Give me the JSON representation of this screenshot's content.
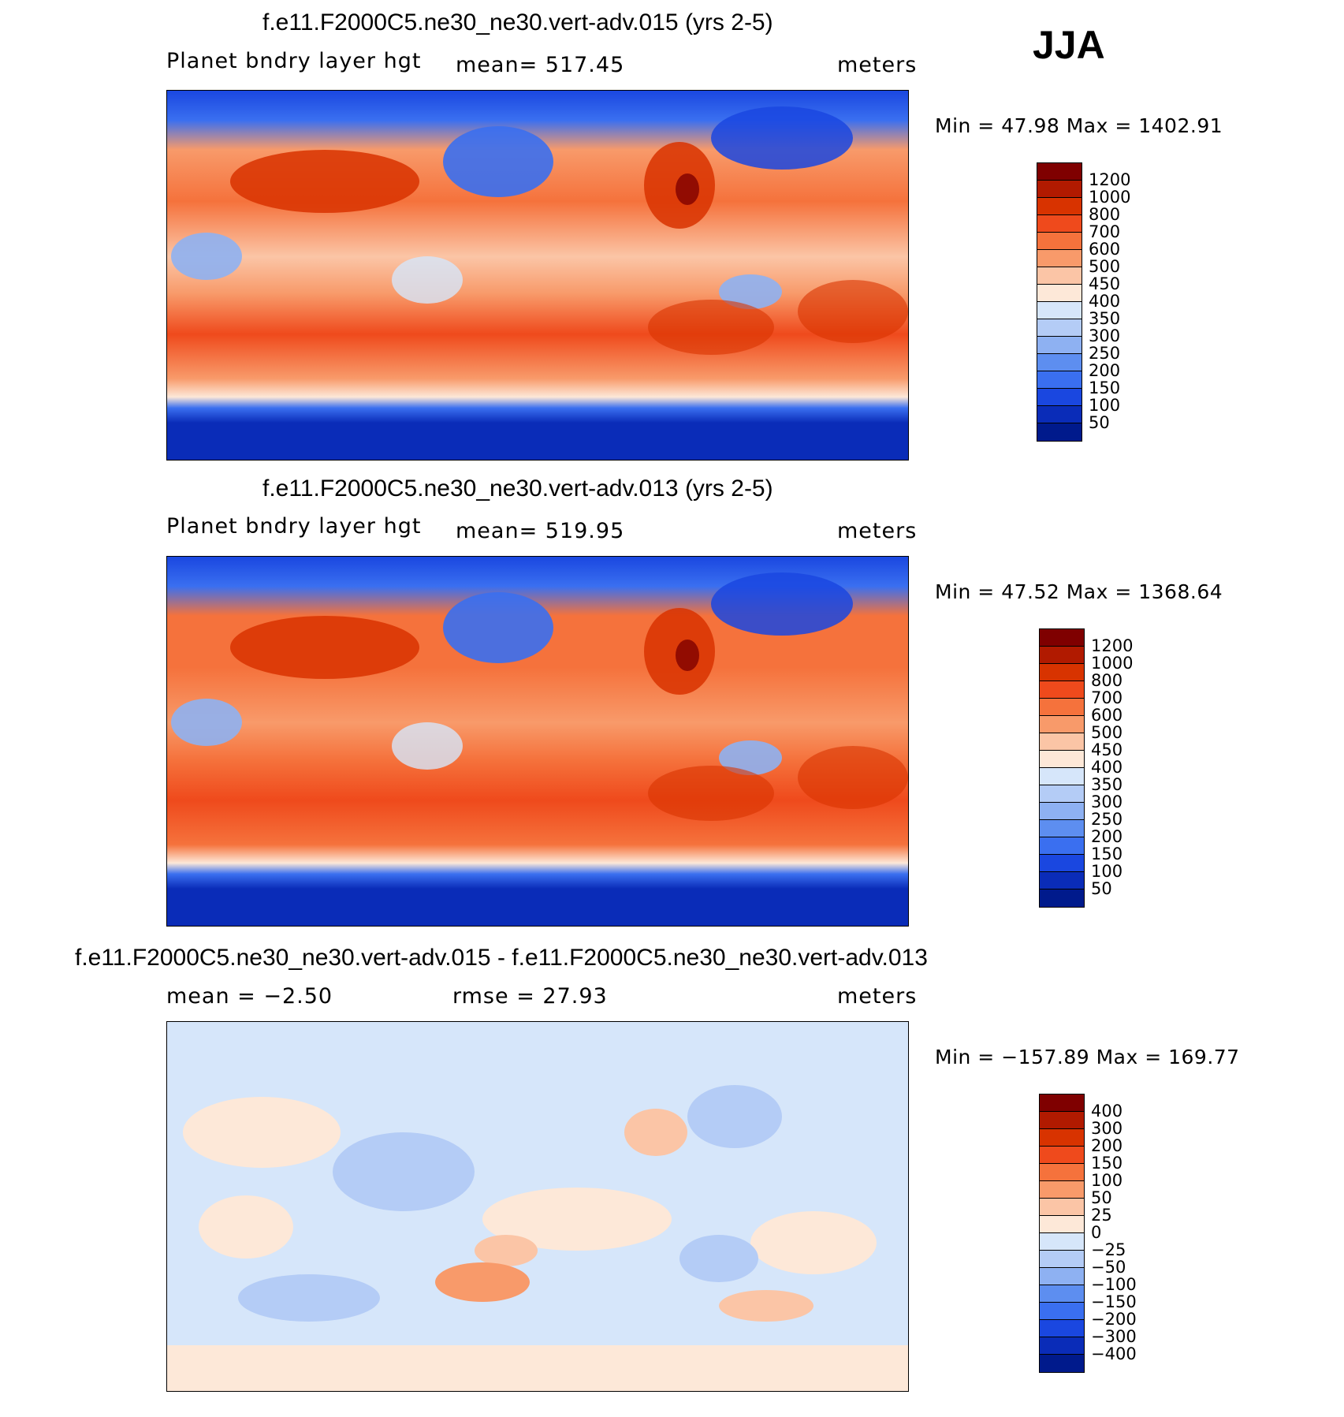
{
  "season": "JJA",
  "panels": [
    {
      "title": "f.e11.F2000C5.ne30_ne30.vert-adv.015 (yrs 2-5)",
      "left_label": "Planet bndry layer hgt",
      "center_label": "mean=  517.45",
      "units": "meters",
      "minmax": "Min =   47.98  Max  =  1402.91",
      "colorbar_labels": [
        "1200",
        "1000",
        "800",
        "700",
        "600",
        "500",
        "450",
        "400",
        "350",
        "300",
        "250",
        "200",
        "150",
        "100",
        "50"
      ]
    },
    {
      "title": "f.e11.F2000C5.ne30_ne30.vert-adv.013 (yrs 2-5)",
      "left_label": "Planet bndry layer hgt",
      "center_label": "mean=  519.95",
      "units": "meters",
      "minmax": "Min =   47.52  Max  =  1368.64",
      "colorbar_labels": [
        "1200",
        "1000",
        "800",
        "700",
        "600",
        "500",
        "450",
        "400",
        "350",
        "300",
        "250",
        "200",
        "150",
        "100",
        "50"
      ]
    },
    {
      "title": "f.e11.F2000C5.ne30_ne30.vert-adv.015 - f.e11.F2000C5.ne30_ne30.vert-adv.013",
      "left_label": "mean  =   −2.50",
      "center_label": "rmse  =    27.93",
      "units": "meters",
      "minmax": "Min  = −157.89  Max  =  169.77",
      "colorbar_labels": [
        "400",
        "300",
        "200",
        "150",
        "100",
        "50",
        "25",
        "0",
        "−25",
        "−50",
        "−100",
        "−150",
        "−200",
        "−300",
        "−400"
      ]
    }
  ],
  "colors": {
    "abs_scale": [
      "#7f0000",
      "#b11a00",
      "#d83300",
      "#ef4a1c",
      "#f5723c",
      "#f89a6a",
      "#fbc5a6",
      "#fde8d8",
      "#d6e6fa",
      "#b4ccf6",
      "#8eb1f2",
      "#5d8ef0",
      "#3a6ff0",
      "#1a47e0",
      "#0a2cb8",
      "#001a8c"
    ],
    "diff_scale": [
      "#7f0000",
      "#b11a00",
      "#d83300",
      "#ef4a1c",
      "#f5723c",
      "#f89a6a",
      "#fbc5a6",
      "#fde8d8",
      "#d6e6fa",
      "#b4ccf6",
      "#8eb1f2",
      "#5d8ef0",
      "#3a6ff0",
      "#1a47e0",
      "#0a2cb8",
      "#001a8c"
    ]
  },
  "chart_data": [
    {
      "type": "heatmap",
      "title": "f.e11.F2000C5.ne30_ne30.vert-adv.015 (yrs 2-5)",
      "variable": "Planet bndry layer hgt",
      "units": "meters",
      "mean": 517.45,
      "min": 47.98,
      "max": 1402.91,
      "levels": [
        50,
        100,
        150,
        200,
        250,
        300,
        350,
        400,
        450,
        500,
        600,
        700,
        800,
        1000,
        1200
      ]
    },
    {
      "type": "heatmap",
      "title": "f.e11.F2000C5.ne30_ne30.vert-adv.013 (yrs 2-5)",
      "variable": "Planet bndry layer hgt",
      "units": "meters",
      "mean": 519.95,
      "min": 47.52,
      "max": 1368.64,
      "levels": [
        50,
        100,
        150,
        200,
        250,
        300,
        350,
        400,
        450,
        500,
        600,
        700,
        800,
        1000,
        1200
      ]
    },
    {
      "type": "heatmap",
      "title": "f.e11.F2000C5.ne30_ne30.vert-adv.015 - f.e11.F2000C5.ne30_ne30.vert-adv.013",
      "units": "meters",
      "mean": -2.5,
      "rmse": 27.93,
      "min": -157.89,
      "max": 169.77,
      "levels": [
        -400,
        -300,
        -200,
        -150,
        -100,
        -50,
        -25,
        0,
        25,
        50,
        100,
        150,
        200,
        300,
        400
      ]
    }
  ]
}
